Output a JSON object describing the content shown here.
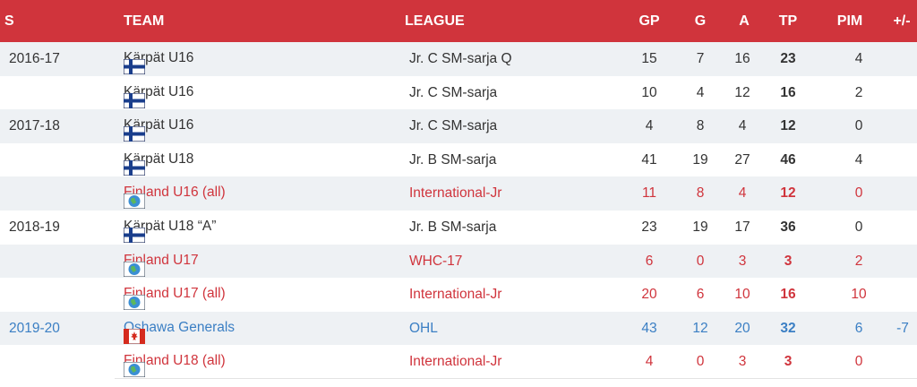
{
  "header": {
    "season": "S",
    "team": "TEAM",
    "league": "LEAGUE",
    "gp": "GP",
    "g": "G",
    "a": "A",
    "tp": "TP",
    "pim": "PIM",
    "pm": "+/-"
  },
  "rows": [
    {
      "season": "2016-17",
      "flag": "finland-flag-icon",
      "team": "Kärpät U16",
      "league": "Jr. C SM-sarja Q",
      "gp": "15",
      "g": "7",
      "a": "16",
      "tp": "23",
      "pim": "4",
      "pm": "",
      "style": "normal"
    },
    {
      "season": "",
      "flag": "finland-flag-icon",
      "team": "Kärpät U16",
      "league": "Jr. C SM-sarja",
      "gp": "10",
      "g": "4",
      "a": "12",
      "tp": "16",
      "pim": "2",
      "pm": "",
      "style": "normal"
    },
    {
      "season": "2017-18",
      "flag": "finland-flag-icon",
      "team": "Kärpät U16",
      "league": "Jr. C SM-sarja",
      "gp": "4",
      "g": "8",
      "a": "4",
      "tp": "12",
      "pim": "0",
      "pm": "",
      "style": "normal"
    },
    {
      "season": "",
      "flag": "finland-flag-icon",
      "team": "Kärpät U18",
      "league": "Jr. B SM-sarja",
      "gp": "41",
      "g": "19",
      "a": "27",
      "tp": "46",
      "pim": "4",
      "pm": "",
      "style": "normal"
    },
    {
      "season": "",
      "flag": "globe-icon",
      "team": "Finland U16 (all)",
      "league": "International-Jr",
      "gp": "11",
      "g": "8",
      "a": "4",
      "tp": "12",
      "pim": "0",
      "pm": "",
      "style": "intl"
    },
    {
      "season": "2018-19",
      "flag": "finland-flag-icon",
      "team": "Kärpät U18 “A”",
      "league": "Jr. B SM-sarja",
      "gp": "23",
      "g": "19",
      "a": "17",
      "tp": "36",
      "pim": "0",
      "pm": "",
      "style": "normal"
    },
    {
      "season": "",
      "flag": "globe-icon",
      "team": "Finland U17",
      "league": "WHC-17",
      "gp": "6",
      "g": "0",
      "a": "3",
      "tp": "3",
      "pim": "2",
      "pm": "",
      "style": "intl"
    },
    {
      "season": "",
      "flag": "globe-icon",
      "team": "Finland U17 (all)",
      "league": "International-Jr",
      "gp": "20",
      "g": "6",
      "a": "10",
      "tp": "16",
      "pim": "10",
      "pm": "",
      "style": "intl"
    },
    {
      "season": "2019-20",
      "flag": "canada-flag-icon",
      "team": "Oshawa Generals",
      "league": "OHL",
      "gp": "43",
      "g": "12",
      "a": "20",
      "tp": "32",
      "pim": "6",
      "pm": "-7",
      "style": "nhl"
    },
    {
      "season": "",
      "flag": "globe-icon",
      "team": "Finland U18 (all)",
      "league": "International-Jr",
      "gp": "4",
      "g": "0",
      "a": "3",
      "tp": "3",
      "pim": "0",
      "pm": "",
      "style": "intl"
    }
  ],
  "colors": {
    "header_bg": "#d0343c",
    "shade": "#eef1f4",
    "intl_text": "#d0343c",
    "link_text": "#3b7fc4"
  }
}
